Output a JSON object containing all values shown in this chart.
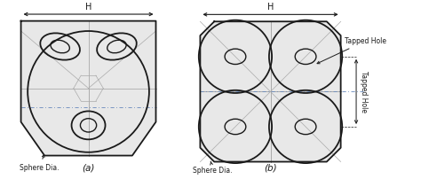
{
  "bg_color": "#e8e8e8",
  "line_color": "#1a1a1a",
  "light_line": "#aaaaaa",
  "dashed_line": "#6688bb",
  "fig_bg": "#ffffff",
  "label_a": "(a)",
  "label_b": "(b)",
  "label_H": "H",
  "label_sphere": "Sphere Dia.",
  "label_tapped1": "Tapped Hole",
  "label_tapped2": "Tapped Hole"
}
